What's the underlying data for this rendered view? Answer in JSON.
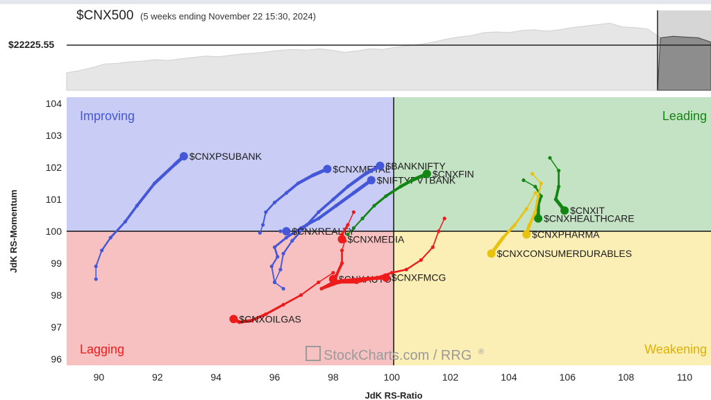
{
  "header": {
    "title": "$CNX500",
    "subtitle": "(5 weeks ending November 22 15:30, 2024)",
    "price_label": "$22225.55"
  },
  "watermark": {
    "text": "StockCharts.com / RRG",
    "mark": "®"
  },
  "colors": {
    "improving": "#4457d8",
    "leading": "#138513",
    "weakening": "#e8c20e",
    "lagging": "#ee1b1b",
    "improving_bg": "#c9cdf5",
    "leading_bg": "#c4e3c4",
    "weakening_bg": "#fbefb6",
    "lagging_bg": "#f7c1c1"
  },
  "chart_data": {
    "type": "scatter",
    "xlabel": "JdK RS-Ratio",
    "ylabel": "JdK RS-Momentum",
    "xlim": [
      88.9,
      110.9
    ],
    "ylim": [
      95.8,
      104.2
    ],
    "xticks": [
      90,
      92,
      94,
      96,
      98,
      100,
      102,
      104,
      106,
      108,
      110
    ],
    "yticks": [
      96,
      97,
      98,
      99,
      100,
      101,
      102,
      103,
      104
    ],
    "quadrants": {
      "improving": "Improving",
      "leading": "Leading",
      "weakening": "Weakening",
      "lagging": "Lagging"
    },
    "benchmark_price": [
      0.24,
      0.27,
      0.31,
      0.36,
      0.37,
      0.39,
      0.4,
      0.42,
      0.41,
      0.43,
      0.45,
      0.47,
      0.46,
      0.48,
      0.5,
      0.51,
      0.53,
      0.55,
      0.56,
      0.55,
      0.57,
      0.55,
      0.52,
      0.54,
      0.57,
      0.56,
      0.59,
      0.61,
      0.63,
      0.66,
      0.7,
      0.73,
      0.75,
      0.79,
      0.8,
      0.79,
      0.82,
      0.83,
      0.81,
      0.83,
      0.86,
      0.88,
      0.9,
      0.92,
      0.87,
      0.86,
      0.84,
      0.72,
      0.74,
      0.73,
      0.72,
      0.66
    ],
    "series": [
      {
        "name": "$CNXPSUBANK",
        "color": "#4457d8",
        "tail": [
          [
            89.9,
            98.5
          ],
          [
            89.9,
            98.9
          ],
          [
            90.1,
            99.4
          ],
          [
            90.4,
            99.8
          ],
          [
            90.9,
            100.3
          ],
          [
            91.3,
            100.8
          ],
          [
            91.9,
            101.5
          ],
          [
            92.6,
            102.1
          ],
          [
            92.9,
            102.35
          ]
        ]
      },
      {
        "name": "$CNXMETAL",
        "color": "#4457d8",
        "tail": [
          [
            95.5,
            99.95
          ],
          [
            95.6,
            100.2
          ],
          [
            95.7,
            100.6
          ],
          [
            96.0,
            100.9
          ],
          [
            96.4,
            101.2
          ],
          [
            96.8,
            101.5
          ],
          [
            97.3,
            101.75
          ],
          [
            97.8,
            101.95
          ]
        ]
      },
      {
        "name": "$BANKNIFTY",
        "color": "#4457d8",
        "tail": [
          [
            96.0,
            98.4
          ],
          [
            96.2,
            98.8
          ],
          [
            96.3,
            99.3
          ],
          [
            96.6,
            99.7
          ],
          [
            97.1,
            100.2
          ],
          [
            97.5,
            100.6
          ],
          [
            98.0,
            101.0
          ],
          [
            98.5,
            101.4
          ],
          [
            99.1,
            101.8
          ],
          [
            99.6,
            102.05
          ]
        ]
      },
      {
        "name": "$NIFTYPVTBANK",
        "color": "#4457d8",
        "tail": [
          [
            96.3,
            98.2
          ],
          [
            96.0,
            98.4
          ],
          [
            95.9,
            98.9
          ],
          [
            96.1,
            99.2
          ],
          [
            96.0,
            99.5
          ],
          [
            96.4,
            99.8
          ],
          [
            96.9,
            100.1
          ],
          [
            97.5,
            100.4
          ],
          [
            98.1,
            100.8
          ],
          [
            98.7,
            101.2
          ],
          [
            99.3,
            101.6
          ]
        ]
      },
      {
        "name": "$CNXREALTY",
        "color": "#4457d8",
        "tail": [
          [
            96.2,
            100.0
          ],
          [
            96.4,
            100.0
          ]
        ]
      },
      {
        "name": "$CNXFIN",
        "color": "#138513",
        "tail": [
          [
            98.5,
            99.9
          ],
          [
            98.7,
            100.1
          ],
          [
            99.0,
            100.4
          ],
          [
            99.4,
            100.8
          ],
          [
            99.8,
            101.1
          ],
          [
            100.3,
            101.4
          ],
          [
            100.7,
            101.6
          ],
          [
            101.2,
            101.8
          ]
        ]
      },
      {
        "name": "$CNXIT",
        "color": "#138513",
        "tail": [
          [
            105.4,
            102.3
          ],
          [
            105.7,
            101.9
          ],
          [
            105.7,
            101.4
          ],
          [
            105.6,
            101.0
          ],
          [
            105.9,
            100.65
          ]
        ]
      },
      {
        "name": "$CNXHEALTHCARE",
        "color": "#138513",
        "tail": [
          [
            104.5,
            101.6
          ],
          [
            104.9,
            101.4
          ],
          [
            105.1,
            101.1
          ],
          [
            105.0,
            100.8
          ],
          [
            105.0,
            100.4
          ]
        ]
      },
      {
        "name": "$CNXPHARMA",
        "color": "#e8c20e",
        "tail": [
          [
            104.8,
            101.8
          ],
          [
            105.1,
            101.5
          ],
          [
            105.0,
            101.1
          ],
          [
            104.9,
            100.6
          ],
          [
            104.7,
            100.2
          ],
          [
            104.6,
            99.9
          ]
        ]
      },
      {
        "name": "$CNXCONSUMERDURABLES",
        "color": "#e8c20e",
        "tail": [
          [
            104.9,
            101.2
          ],
          [
            104.6,
            100.7
          ],
          [
            104.2,
            100.2
          ],
          [
            103.8,
            99.8
          ],
          [
            103.4,
            99.3
          ]
        ]
      },
      {
        "name": "$CNXMEDIA",
        "color": "#ee1b1b",
        "tail": [
          [
            98.7,
            100.6
          ],
          [
            98.5,
            100.2
          ],
          [
            98.3,
            99.9
          ],
          [
            98.3,
            99.75
          ]
        ]
      },
      {
        "name": "$CNXAUTO",
        "color": "#ee1b1b",
        "tail": [
          [
            98.4,
            99.7
          ],
          [
            98.3,
            99.4
          ],
          [
            98.3,
            99.0
          ],
          [
            98.1,
            98.6
          ],
          [
            98.0,
            98.5
          ]
        ]
      },
      {
        "name": "$CNXFMCG",
        "color": "#ee1b1b",
        "tail": [
          [
            101.8,
            100.4
          ],
          [
            101.6,
            100.0
          ],
          [
            101.4,
            99.5
          ],
          [
            101.0,
            99.1
          ],
          [
            100.5,
            98.8
          ],
          [
            100.0,
            98.7
          ],
          [
            99.5,
            98.55
          ],
          [
            98.8,
            98.4
          ],
          [
            98.2,
            98.4
          ],
          [
            97.6,
            98.2
          ],
          [
            98.0,
            98.4
          ],
          [
            98.3,
            98.45
          ],
          [
            99.0,
            98.5
          ],
          [
            99.8,
            98.55
          ]
        ]
      },
      {
        "name": "$CNXOILGAS",
        "color": "#ee1b1b",
        "tail": [
          [
            98.0,
            98.7
          ],
          [
            97.5,
            98.4
          ],
          [
            96.9,
            98.0
          ],
          [
            96.3,
            97.7
          ],
          [
            95.7,
            97.4
          ],
          [
            95.2,
            97.2
          ],
          [
            94.8,
            97.15
          ],
          [
            94.6,
            97.25
          ]
        ]
      }
    ]
  }
}
